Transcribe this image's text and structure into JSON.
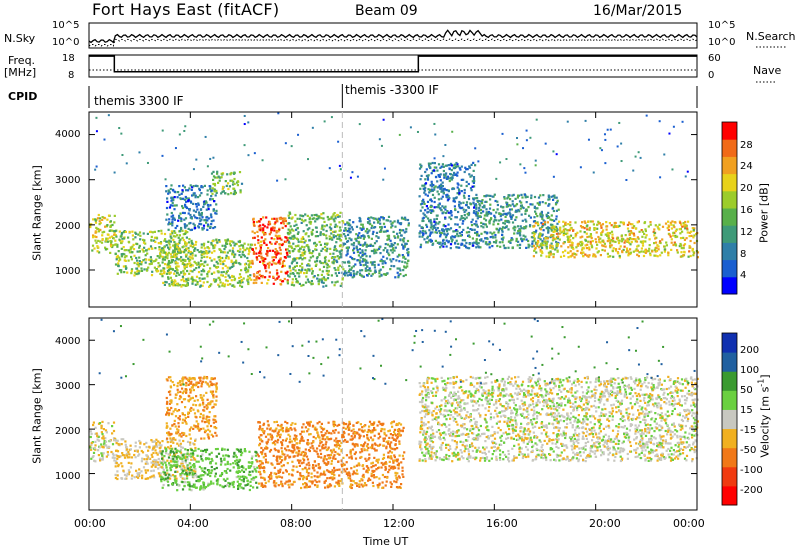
{
  "header": {
    "station": "Fort Hays East (fitACF)",
    "beam": "Beam 09",
    "date": "16/Mar/2015"
  },
  "strips": {
    "nsky_label": "N.Sky",
    "nsearch_label": "N.Search",
    "noise_ticks": [
      "10^5",
      "10^0"
    ],
    "freq_label_1": "Freq.",
    "freq_label_2": "[MHz]",
    "freq_ticks": [
      "18",
      "8"
    ],
    "nave_label": "Nave",
    "nave_ticks": [
      "60",
      "0"
    ],
    "cpid_label": "CPID",
    "cpid_segments": [
      {
        "name": "themis 3300 IF",
        "start_hour": 0.0,
        "end_hour": 10.0
      },
      {
        "name": "themis -3300 IF",
        "start_hour": 10.0,
        "end_hour": 24.0
      }
    ],
    "freq_steps": [
      {
        "start_hour": 0.0,
        "end_hour": 1.0,
        "freq_mhz": 17.5
      },
      {
        "start_hour": 1.0,
        "end_hour": 13.0,
        "freq_mhz": 10.4
      },
      {
        "start_hour": 13.0,
        "end_hour": 24.0,
        "freq_mhz": 17.5
      }
    ]
  },
  "chart_data": [
    {
      "type": "heatmap",
      "name": "power",
      "ylabel": "Slant Range [km]",
      "colorbar_label": "Power [dB]",
      "ylim": [
        180,
        4500
      ],
      "xlim": [
        0,
        24
      ],
      "yticks": [
        1000,
        2000,
        3000,
        4000
      ],
      "colorbar": {
        "ticks": [
          "28",
          "24",
          "20",
          "16",
          "12",
          "8",
          "4"
        ],
        "colors": [
          "#0000ff",
          "#1a5fd0",
          "#2f7fa8",
          "#3e9a78",
          "#58b04a",
          "#9ccc2a",
          "#e8d21a",
          "#f0a020",
          "#f06a18",
          "#ff0000"
        ]
      },
      "regions": [
        {
          "t0": 0.0,
          "t1": 1.0,
          "r0": 1400,
          "r1": 2250,
          "level": 16
        },
        {
          "t0": 1.0,
          "t1": 4.0,
          "r0": 900,
          "r1": 1900,
          "level": 14
        },
        {
          "t0": 3.0,
          "t1": 5.0,
          "r0": 1900,
          "r1": 2900,
          "level": 6
        },
        {
          "t0": 4.8,
          "t1": 6.0,
          "r0": 2700,
          "r1": 3200,
          "level": 12
        },
        {
          "t0": 2.8,
          "t1": 6.4,
          "r0": 650,
          "r1": 1700,
          "level": 14
        },
        {
          "t0": 6.4,
          "t1": 7.8,
          "r0": 700,
          "r1": 2200,
          "level": 24
        },
        {
          "t0": 7.8,
          "t1": 10.0,
          "r0": 650,
          "r1": 2300,
          "level": 12
        },
        {
          "t0": 10.0,
          "t1": 12.6,
          "r0": 850,
          "r1": 2200,
          "level": 8
        },
        {
          "t0": 13.0,
          "t1": 15.2,
          "r0": 1500,
          "r1": 3400,
          "level": 6
        },
        {
          "t0": 15.2,
          "t1": 18.5,
          "r0": 1500,
          "r1": 2700,
          "level": 8
        },
        {
          "t0": 17.5,
          "t1": 24.0,
          "r0": 1300,
          "r1": 2100,
          "level": 18
        }
      ]
    },
    {
      "type": "heatmap",
      "name": "velocity",
      "ylabel": "Slant Range [km]",
      "colorbar_label": "Velocity [m s^-1]",
      "ylim": [
        180,
        4500
      ],
      "xlim": [
        0,
        24
      ],
      "yticks": [
        1000,
        2000,
        3000,
        4000
      ],
      "xticks": [
        "00:00",
        "04:00",
        "08:00",
        "12:00",
        "16:00",
        "20:00",
        "00:00"
      ],
      "xlabel": "Time UT",
      "colorbar": {
        "ticks": [
          "200",
          "100",
          "50",
          "15",
          "-15",
          "-50",
          "-100",
          "-200"
        ],
        "colors": [
          "#1030b0",
          "#2060a0",
          "#3a9a30",
          "#6ad040",
          "#c8c8c0",
          "#f0b020",
          "#f07818",
          "#f03a10",
          "#ff0000"
        ]
      },
      "regions": [
        {
          "t0": 0.0,
          "t1": 1.0,
          "r0": 1300,
          "r1": 2200,
          "value": 0
        },
        {
          "t0": 1.0,
          "t1": 4.2,
          "r0": 900,
          "r1": 1800,
          "value": -20
        },
        {
          "t0": 3.0,
          "t1": 5.0,
          "r0": 1800,
          "r1": 3200,
          "value": -45
        },
        {
          "t0": 2.8,
          "t1": 6.6,
          "r0": 650,
          "r1": 1600,
          "value": 40
        },
        {
          "t0": 6.6,
          "t1": 12.4,
          "r0": 700,
          "r1": 2200,
          "value": -60
        },
        {
          "t0": 13.0,
          "t1": 24.0,
          "r0": 1300,
          "r1": 3200,
          "value": 0
        }
      ]
    }
  ]
}
